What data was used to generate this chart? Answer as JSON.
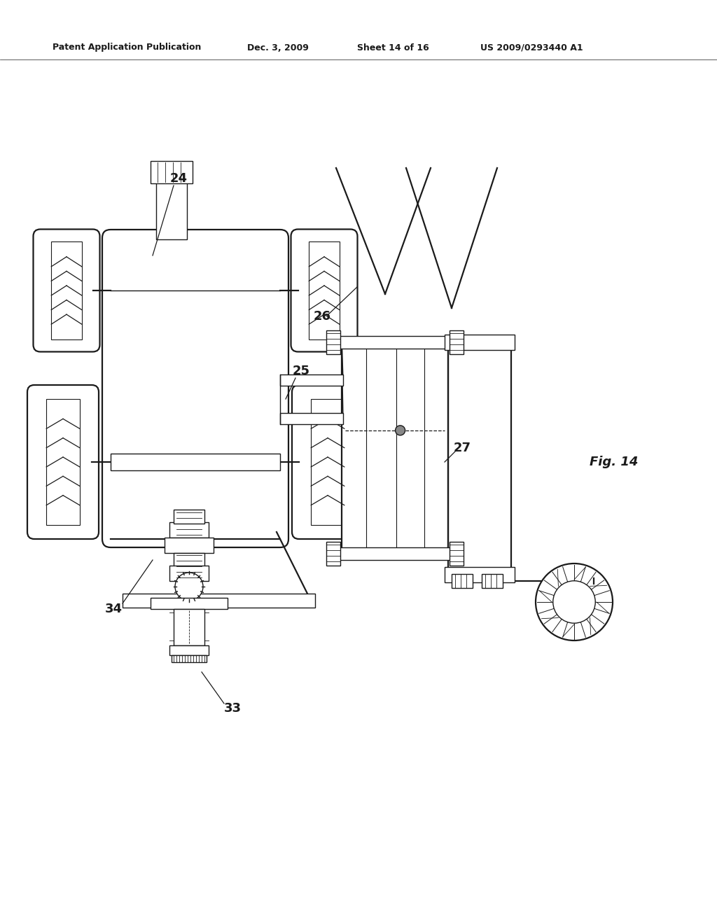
{
  "header_left": "Patent Application Publication",
  "header_date": "Dec. 3, 2009",
  "header_sheet": "Sheet 14 of 16",
  "header_patent": "US 2009/0293440 A1",
  "fig_label": "Fig. 14",
  "bg_color": "#ffffff",
  "line_color": "#1a1a1a",
  "lw0": 0.6,
  "lw1": 1.0,
  "lw2": 1.6,
  "lw3": 2.2
}
